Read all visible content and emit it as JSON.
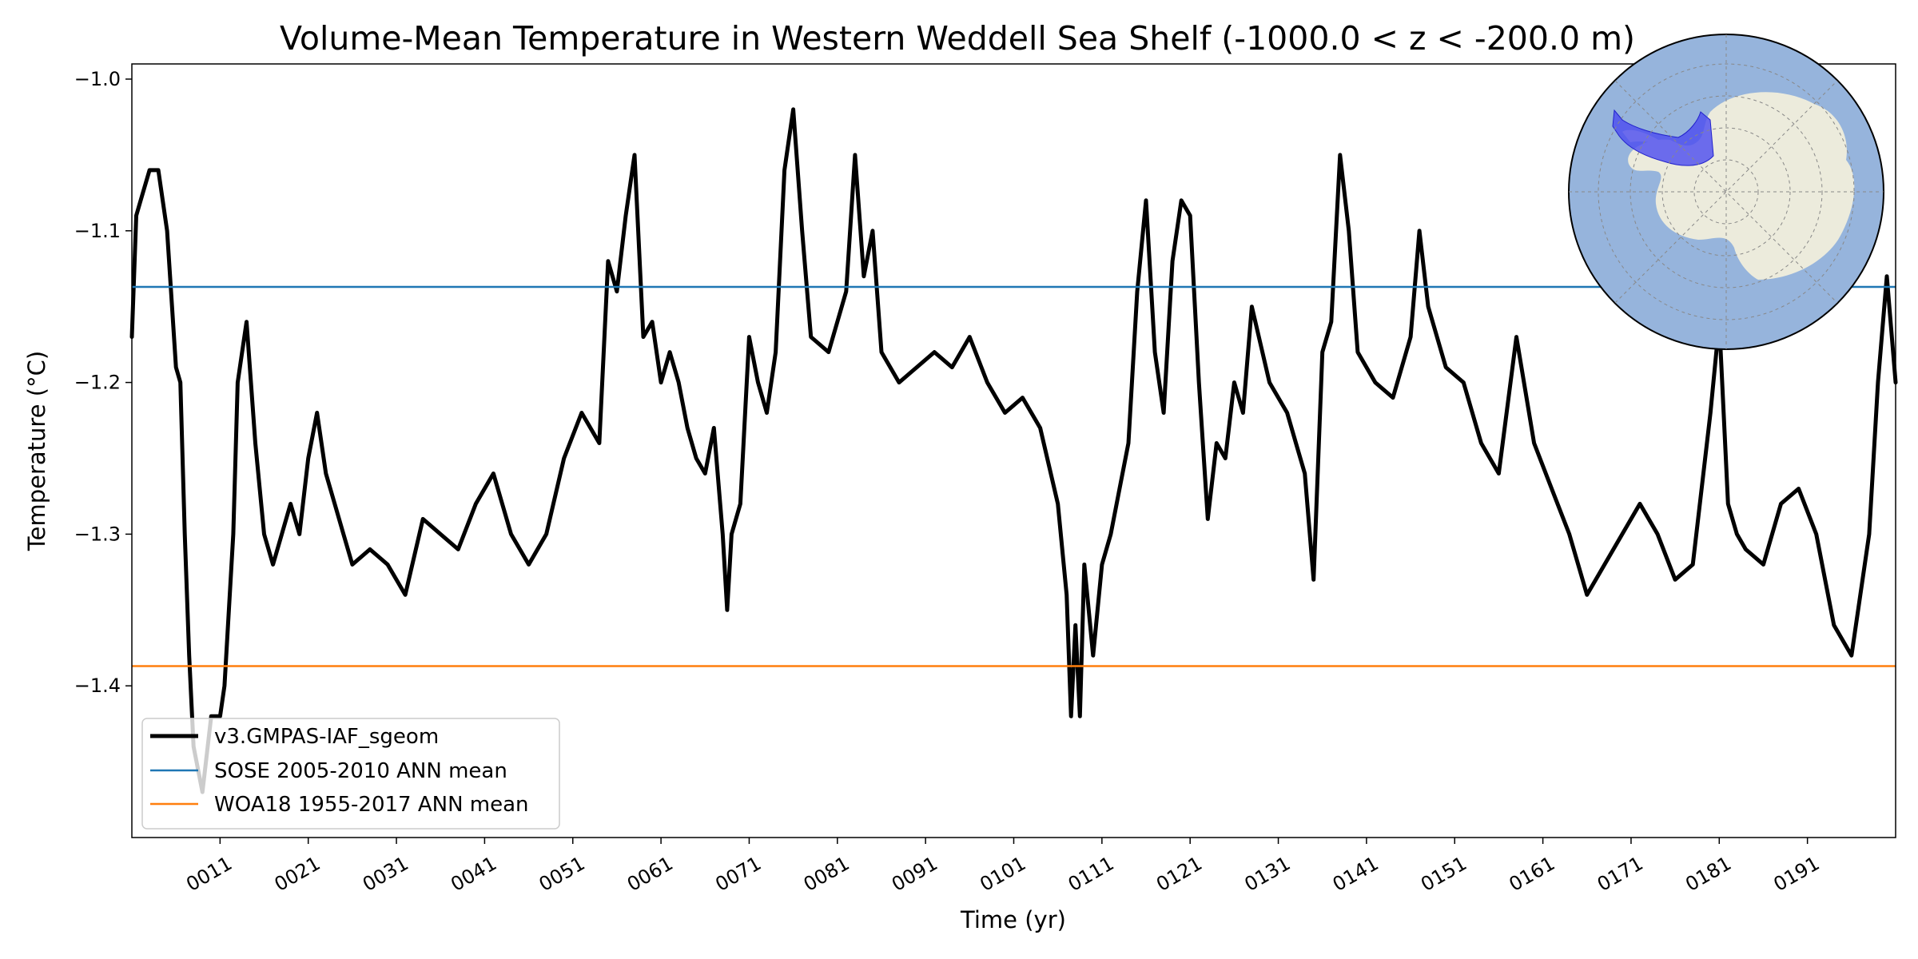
{
  "chart_data": {
    "type": "line",
    "title": "Volume-Mean Temperature in Western Weddell Sea Shelf (-1000.0 < z < -200.0 m)",
    "xlabel": "Time (yr)",
    "ylabel": "Temperature (°C)",
    "xlim": [
      1,
      201
    ],
    "ylim": [
      -1.5,
      -0.99
    ],
    "x_ticks": [
      11,
      21,
      31,
      41,
      51,
      61,
      71,
      81,
      91,
      101,
      111,
      121,
      131,
      141,
      151,
      161,
      171,
      181,
      191
    ],
    "x_tick_labels": [
      "0011",
      "0021",
      "0031",
      "0041",
      "0051",
      "0061",
      "0071",
      "0081",
      "0091",
      "0101",
      "0111",
      "0121",
      "0131",
      "0141",
      "0151",
      "0161",
      "0171",
      "0181",
      "0191"
    ],
    "y_ticks": [
      -1.4,
      -1.3,
      -1.2,
      -1.1,
      -1.0
    ],
    "y_tick_labels": [
      "−1.4",
      "−1.3",
      "−1.2",
      "−1.1",
      "−1.0"
    ],
    "legend_position": "lower-left",
    "series": [
      {
        "name": "v3.GMPAS-IAF_sgeom",
        "color": "#000000",
        "style": "thick-line",
        "x": [
          1,
          1.5,
          2,
          3,
          4,
          5,
          6,
          6.5,
          7,
          7.5,
          8,
          9,
          10,
          11,
          11.5,
          12,
          12.5,
          13,
          14,
          15,
          16,
          17,
          18,
          19,
          20,
          21,
          22,
          23,
          24,
          25,
          26,
          28,
          30,
          32,
          34,
          36,
          38,
          40,
          42,
          44,
          46,
          48,
          50,
          52,
          54,
          55,
          56,
          57,
          58,
          59,
          60,
          61,
          62,
          63,
          64,
          65,
          66,
          67,
          68,
          68.5,
          69,
          70,
          71,
          72,
          73,
          74,
          75,
          76,
          77,
          78,
          80,
          82,
          83,
          84,
          85,
          86,
          88,
          90,
          92,
          94,
          96,
          98,
          100,
          102,
          104,
          106,
          107,
          107.5,
          108,
          108.5,
          109,
          110,
          111,
          112,
          113,
          114,
          115,
          116,
          117,
          118,
          119,
          120,
          121,
          122,
          123,
          124,
          125,
          126,
          127,
          128,
          130,
          132,
          133,
          134,
          135,
          136,
          137,
          138,
          139,
          140,
          142,
          144,
          146,
          147,
          148,
          150,
          152,
          154,
          156,
          158,
          160,
          162,
          164,
          166,
          168,
          170,
          172,
          174,
          176,
          178,
          180,
          181,
          182,
          183,
          184,
          186,
          188,
          190,
          192,
          194,
          196,
          198,
          199,
          200,
          201
        ],
        "y": [
          -1.17,
          -1.09,
          -1.08,
          -1.06,
          -1.06,
          -1.1,
          -1.19,
          -1.2,
          -1.3,
          -1.38,
          -1.44,
          -1.47,
          -1.42,
          -1.42,
          -1.4,
          -1.35,
          -1.3,
          -1.2,
          -1.16,
          -1.24,
          -1.3,
          -1.32,
          -1.3,
          -1.28,
          -1.3,
          -1.25,
          -1.22,
          -1.26,
          -1.28,
          -1.3,
          -1.32,
          -1.31,
          -1.32,
          -1.34,
          -1.29,
          -1.3,
          -1.31,
          -1.28,
          -1.26,
          -1.3,
          -1.32,
          -1.3,
          -1.25,
          -1.22,
          -1.24,
          -1.12,
          -1.14,
          -1.09,
          -1.05,
          -1.17,
          -1.16,
          -1.2,
          -1.18,
          -1.2,
          -1.23,
          -1.25,
          -1.26,
          -1.23,
          -1.3,
          -1.35,
          -1.3,
          -1.28,
          -1.17,
          -1.2,
          -1.22,
          -1.18,
          -1.06,
          -1.02,
          -1.1,
          -1.17,
          -1.18,
          -1.14,
          -1.05,
          -1.13,
          -1.1,
          -1.18,
          -1.2,
          -1.19,
          -1.18,
          -1.19,
          -1.17,
          -1.2,
          -1.22,
          -1.21,
          -1.23,
          -1.28,
          -1.34,
          -1.42,
          -1.36,
          -1.42,
          -1.32,
          -1.38,
          -1.32,
          -1.3,
          -1.27,
          -1.24,
          -1.14,
          -1.08,
          -1.18,
          -1.22,
          -1.12,
          -1.08,
          -1.09,
          -1.2,
          -1.29,
          -1.24,
          -1.25,
          -1.2,
          -1.22,
          -1.15,
          -1.2,
          -1.22,
          -1.24,
          -1.26,
          -1.33,
          -1.18,
          -1.16,
          -1.05,
          -1.1,
          -1.18,
          -1.2,
          -1.21,
          -1.17,
          -1.1,
          -1.15,
          -1.19,
          -1.2,
          -1.24,
          -1.26,
          -1.17,
          -1.24,
          -1.27,
          -1.3,
          -1.34,
          -1.32,
          -1.3,
          -1.28,
          -1.3,
          -1.33,
          -1.32,
          -1.22,
          -1.16,
          -1.28,
          -1.3,
          -1.31,
          -1.32,
          -1.28,
          -1.27,
          -1.3,
          -1.36,
          -1.38,
          -1.3,
          -1.2,
          -1.13,
          -1.2
        ]
      },
      {
        "name": "SOSE 2005-2010 ANN mean",
        "color": "#1f77b4",
        "style": "hline",
        "value": -1.137
      },
      {
        "name": "WOA18 1955-2017 ANN mean",
        "color": "#ff7f0e",
        "style": "hline",
        "value": -1.387
      }
    ],
    "inset_map": {
      "label": "Antarctica south polar stereographic map",
      "ocean_color": "#96b4dc",
      "land_color": "#ecebdc",
      "region_color": "#4b4bf0"
    }
  }
}
